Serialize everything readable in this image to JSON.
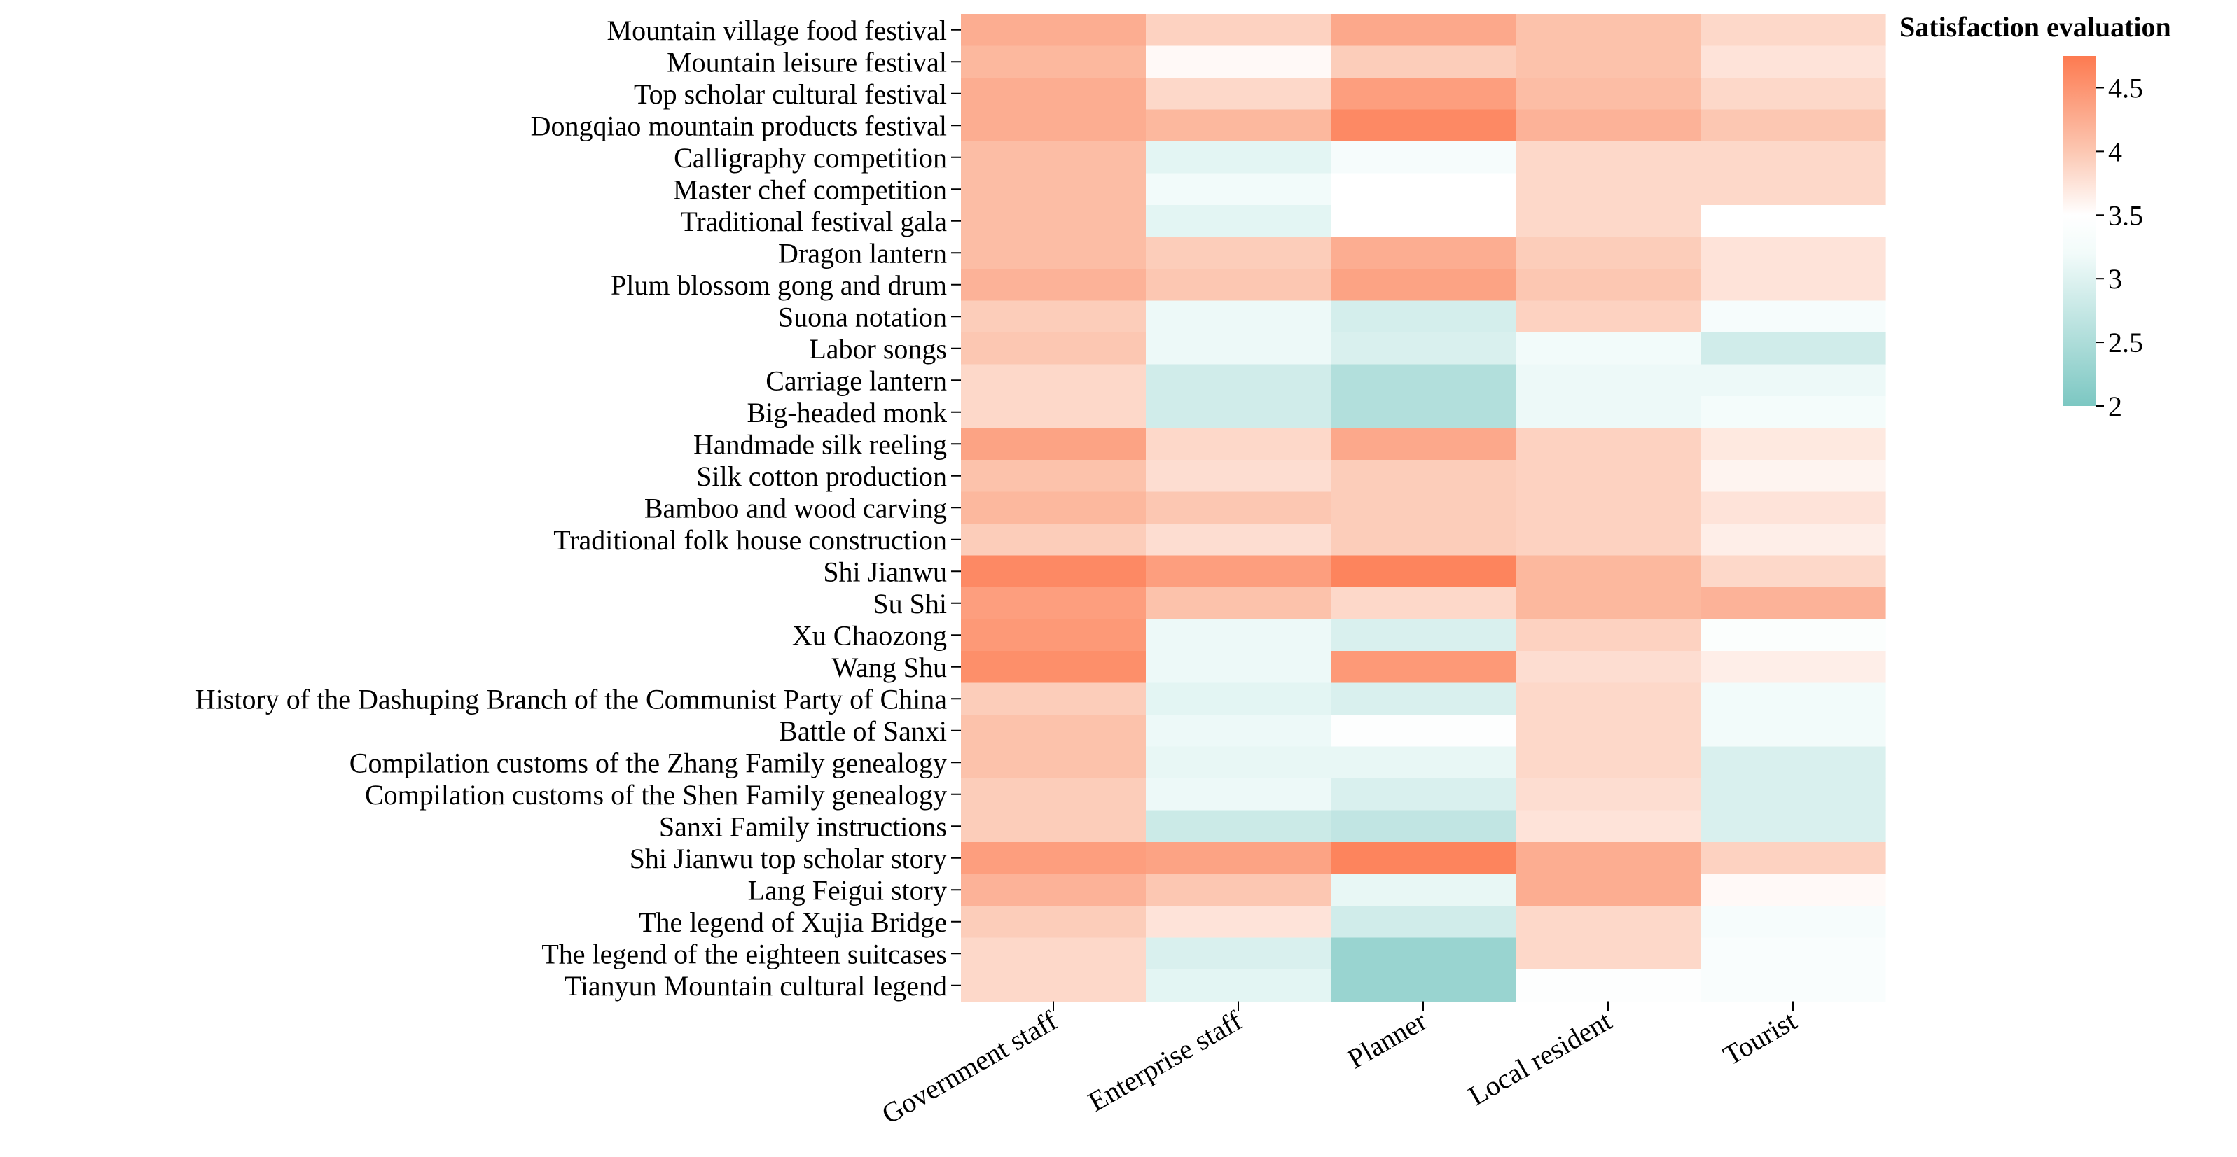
{
  "chart_data": {
    "type": "heatmap",
    "title": "",
    "xlabel": "",
    "ylabel": "",
    "legend_title": "Satisfaction evaluation",
    "colorbar": {
      "min": 2,
      "max": 4.75,
      "ticks": [
        2,
        2.5,
        3,
        3.5,
        4,
        4.5
      ],
      "tick_labels": [
        "2",
        "2.5",
        "3",
        "3.5",
        "4",
        "4.5"
      ],
      "color_stops": [
        {
          "value": 2.0,
          "color": "#7cc7c2"
        },
        {
          "value": 3.2,
          "color": "#f2fbfa"
        },
        {
          "value": 3.5,
          "color": "#ffffff"
        },
        {
          "value": 4.0,
          "color": "#fcc7b2"
        },
        {
          "value": 4.75,
          "color": "#fd7a50"
        }
      ]
    },
    "columns": [
      "Government staff",
      "Enterprise staff",
      "Planner",
      "Local resident",
      "Tourist"
    ],
    "rows": [
      "Mountain village food festival",
      "Mountain leisure festival",
      "Top scholar cultural festival",
      "Dongqiao mountain products festival",
      "Calligraphy competition",
      "Master chef competition",
      "Traditional festival gala",
      "Dragon lantern",
      "Plum blossom gong and drum",
      "Suona notation",
      "Labor songs",
      "Carriage lantern",
      "Big-headed monk",
      "Handmade silk reeling",
      "Silk cotton production",
      "Bamboo and wood carving",
      "Traditional folk house construction",
      "Shi Jianwu",
      "Su Shi",
      "Xu Chaozong",
      "Wang Shu",
      "History of the Dashuping Branch of the Communist Party of China",
      "Battle of Sanxi",
      "Compilation customs of the Zhang Family genealogy",
      "Compilation customs of the Shen Family genealogy",
      "Sanxi Family instructions",
      "Shi Jianwu top scholar story",
      "Lang Feigui story",
      "The legend of Xujia Bridge",
      "The legend of the eighteen suitcases",
      "Tianyun Mountain cultural legend"
    ],
    "values": [
      [
        4.25,
        3.9,
        4.3,
        4.05,
        3.85
      ],
      [
        4.15,
        3.55,
        3.95,
        4.05,
        3.75
      ],
      [
        4.25,
        3.85,
        4.4,
        4.1,
        3.85
      ],
      [
        4.25,
        4.15,
        4.6,
        4.2,
        4.0
      ],
      [
        4.1,
        3.05,
        3.3,
        3.85,
        3.85
      ],
      [
        4.1,
        3.2,
        3.5,
        3.85,
        3.85
      ],
      [
        4.1,
        3.05,
        3.5,
        3.85,
        3.5
      ],
      [
        4.1,
        3.95,
        4.25,
        3.95,
        3.75
      ],
      [
        4.2,
        4.0,
        4.35,
        4.0,
        3.75
      ],
      [
        3.95,
        3.15,
        2.9,
        3.9,
        3.3
      ],
      [
        4.0,
        3.15,
        2.95,
        3.2,
        2.85
      ],
      [
        3.85,
        2.85,
        2.55,
        3.15,
        3.15
      ],
      [
        3.85,
        2.85,
        2.55,
        3.15,
        3.25
      ],
      [
        4.35,
        3.85,
        4.3,
        3.9,
        3.7
      ],
      [
        4.05,
        3.8,
        3.95,
        3.9,
        3.6
      ],
      [
        4.15,
        4.0,
        3.95,
        3.9,
        3.75
      ],
      [
        3.95,
        3.8,
        3.95,
        3.9,
        3.65
      ],
      [
        4.6,
        4.4,
        4.65,
        4.15,
        3.85
      ],
      [
        4.4,
        4.05,
        3.85,
        4.15,
        4.2
      ],
      [
        4.45,
        3.15,
        2.95,
        3.9,
        3.4
      ],
      [
        4.55,
        3.15,
        4.45,
        3.8,
        3.65
      ],
      [
        3.95,
        3.05,
        2.95,
        3.85,
        3.2
      ],
      [
        4.05,
        3.15,
        3.45,
        3.85,
        3.2
      ],
      [
        4.05,
        3.1,
        3.1,
        3.85,
        2.95
      ],
      [
        3.95,
        3.15,
        2.95,
        3.8,
        2.95
      ],
      [
        3.95,
        2.8,
        2.7,
        3.75,
        2.95
      ],
      [
        4.4,
        4.35,
        4.65,
        4.25,
        3.9
      ],
      [
        4.2,
        4.0,
        3.1,
        4.25,
        3.55
      ],
      [
        3.95,
        3.75,
        2.85,
        3.85,
        3.3
      ],
      [
        3.85,
        2.95,
        2.3,
        3.85,
        3.35
      ],
      [
        3.85,
        3.05,
        2.3,
        3.45,
        3.35
      ]
    ]
  }
}
